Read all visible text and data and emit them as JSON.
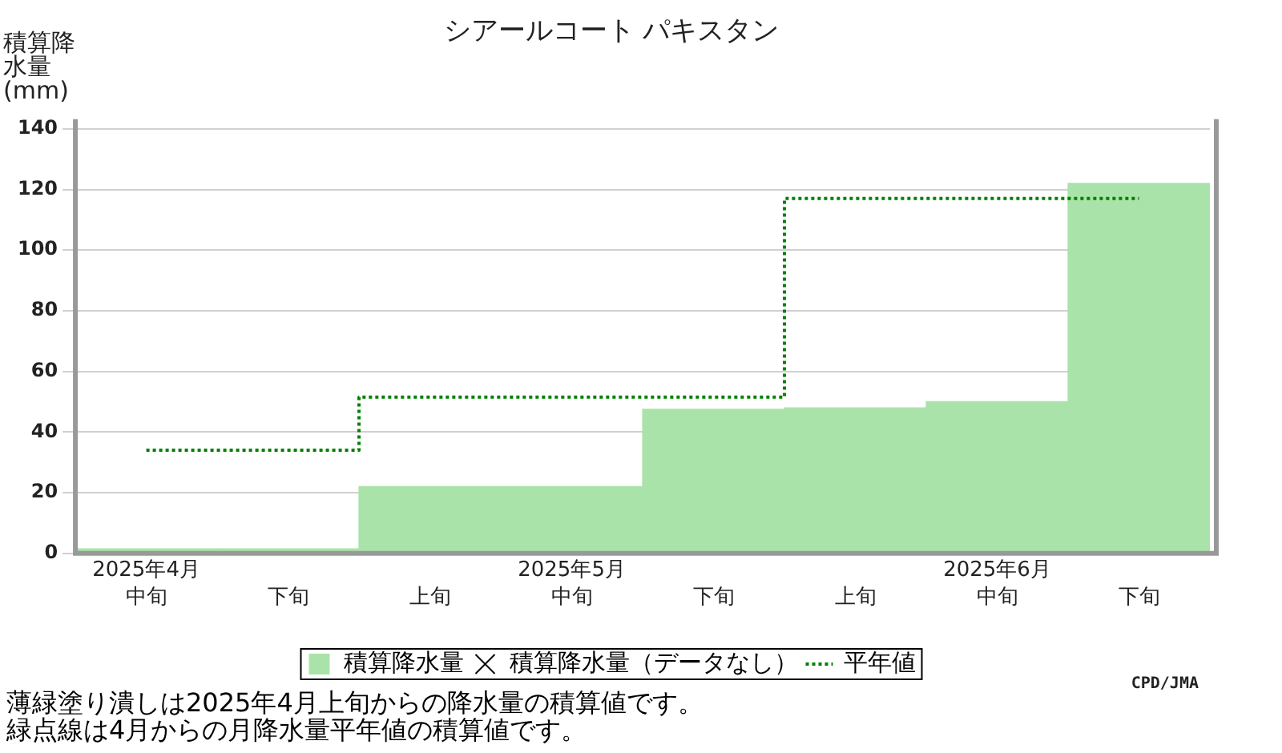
{
  "chart_data": {
    "type": "bar",
    "title": "シアールコート パキスタン",
    "ylabel": "積算降水量(mm)",
    "categories": [
      "中旬",
      "下旬",
      "上旬",
      "中旬",
      "下旬",
      "上旬",
      "中旬",
      "下旬"
    ],
    "series": [
      {
        "name": "積算降水量",
        "color": "#aae3aa",
        "values": [
          1.5,
          1.5,
          22,
          22,
          47.5,
          48,
          50,
          122
        ]
      },
      {
        "name": "積算降水量（データなし）",
        "type": "scatter",
        "marker": "cross",
        "color": "#000000",
        "values": [
          null,
          null,
          null,
          null,
          null,
          null,
          null,
          null
        ]
      },
      {
        "name": "平年値",
        "type": "step",
        "line_style": "dotted",
        "color": "#008000",
        "values": [
          34,
          34,
          51.5,
          51.5,
          51.5,
          117,
          117,
          117
        ]
      }
    ],
    "ylim": [
      0,
      140
    ],
    "yticks": [
      0,
      20,
      40,
      60,
      80,
      100,
      120,
      140
    ],
    "grid": "y",
    "legend": "bottom",
    "annotations": [
      "2025年4月",
      "2025年5月",
      "2025年6月",
      "CPD/JMA",
      "薄緑塗り潰しは2025年4月上旬からの降水量の積算値です。",
      "緑点線は4月からの月降水量平年値の積算値です。"
    ]
  }
}
